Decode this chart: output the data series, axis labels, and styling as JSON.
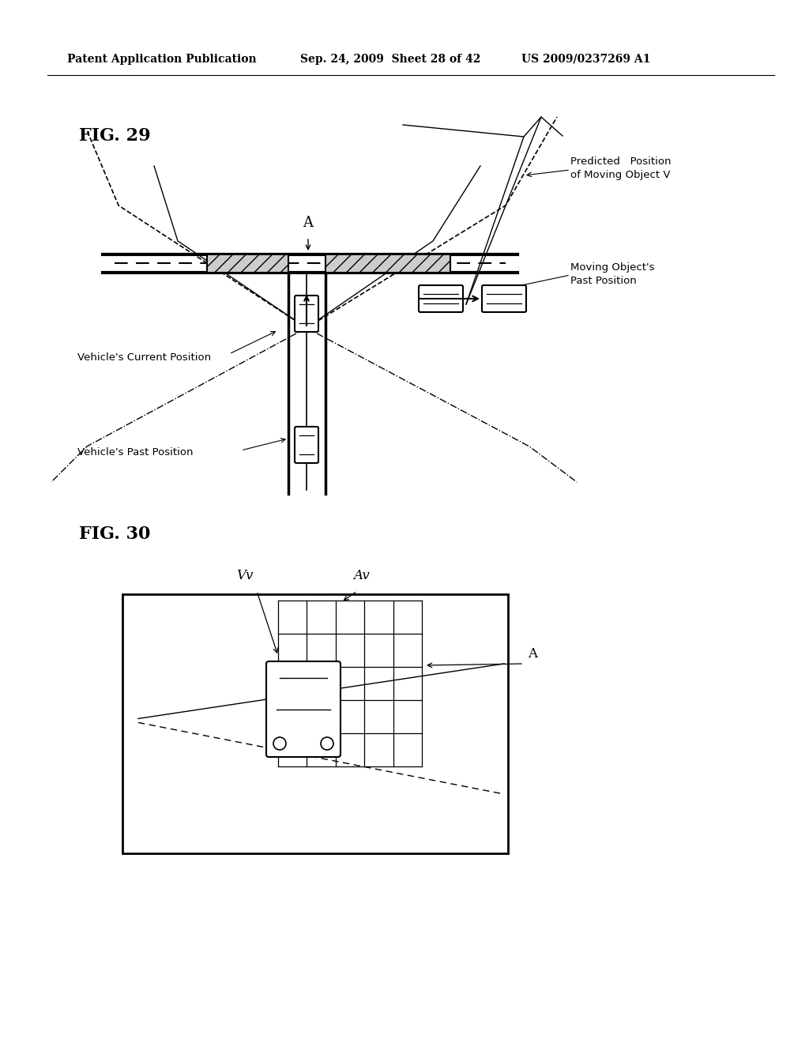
{
  "bg_color": "#ffffff",
  "header_left": "Patent Application Publication",
  "header_mid": "Sep. 24, 2009  Sheet 28 of 42",
  "header_right": "US 2009/0237269 A1",
  "fig29_label": "FIG. 29",
  "fig30_label": "FIG. 30",
  "label_A_fig29": "A",
  "label_predicted": "Predicted   Position\nof Moving Object V",
  "label_moving_past": "Moving Object's\nPast Position",
  "label_vehicle_current": "Vehicle's Current Position",
  "label_vehicle_past": "Vehicle's Past Position",
  "label_Vv": "Vv",
  "label_Av": "Av",
  "label_A_fig30": "A"
}
